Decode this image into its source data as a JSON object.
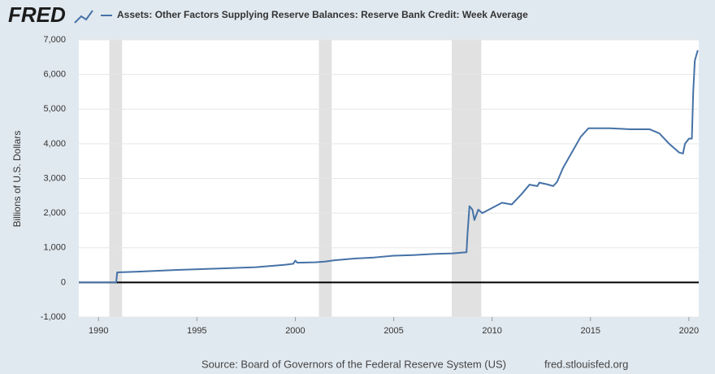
{
  "logo": "FRED",
  "chart_data": {
    "type": "line",
    "ylabel": "Billions of U.S. Dollars",
    "source": "Source: Board of Governors of the Federal Reserve System (US)",
    "url": "fred.stlouisfed.org",
    "xlim": [
      1989.0,
      2020.5
    ],
    "xticks": [
      1990,
      1995,
      2000,
      2005,
      2010,
      2015,
      2020
    ],
    "ylim": [
      -1000,
      7000
    ],
    "yticks": [
      {
        "value": -1000,
        "label": "-1,000"
      },
      0,
      {
        "value": 1000,
        "label": "1,000"
      },
      {
        "value": 2000,
        "label": "2,000"
      },
      {
        "value": 3000,
        "label": "3,000"
      },
      {
        "value": 4000,
        "label": "4,000"
      },
      {
        "value": 5000,
        "label": "5,000"
      },
      {
        "value": 6000,
        "label": "6,000"
      },
      {
        "value": 7000,
        "label": "7,000"
      }
    ],
    "grid": true,
    "recessions": [
      [
        1990.55,
        1991.2
      ],
      [
        2001.2,
        2001.85
      ],
      [
        2007.95,
        2009.45
      ]
    ],
    "recession_color": "#e1e1e1",
    "series": [
      {
        "name": "Assets: Other Factors Supplying Reserve Balances: Reserve Bank Credit: Week Average",
        "color": "#4572a7",
        "x": [
          1989.0,
          1990.9,
          1990.95,
          1992,
          1994,
          1996,
          1998,
          1999.5,
          1999.9,
          2000.0,
          2000.1,
          2001,
          2001.5,
          2002,
          2003,
          2004,
          2005,
          2006,
          2007,
          2008,
          2008.7,
          2008.75,
          2008.85,
          2009,
          2009.1,
          2009.3,
          2009.5,
          2010,
          2010.5,
          2011,
          2011.5,
          2011.9,
          2012.3,
          2012.4,
          2012.8,
          2013.1,
          2013.3,
          2013.6,
          2014,
          2014.5,
          2014.9,
          2015.5,
          2016,
          2017,
          2018,
          2018.5,
          2019,
          2019.5,
          2019.7,
          2019.8,
          2020.0,
          2020.15,
          2020.22,
          2020.3,
          2020.45
        ],
        "values": [
          0,
          0,
          290,
          310,
          360,
          400,
          440,
          510,
          540,
          630,
          570,
          580,
          600,
          640,
          690,
          720,
          770,
          790,
          820,
          840,
          870,
          1400,
          2200,
          2100,
          1800,
          2100,
          2000,
          2150,
          2300,
          2250,
          2550,
          2820,
          2780,
          2880,
          2830,
          2780,
          2900,
          3300,
          3700,
          4200,
          4450,
          4450,
          4450,
          4420,
          4420,
          4300,
          4000,
          3750,
          3720,
          4000,
          4150,
          4150,
          5500,
          6400,
          6700
        ]
      }
    ]
  }
}
